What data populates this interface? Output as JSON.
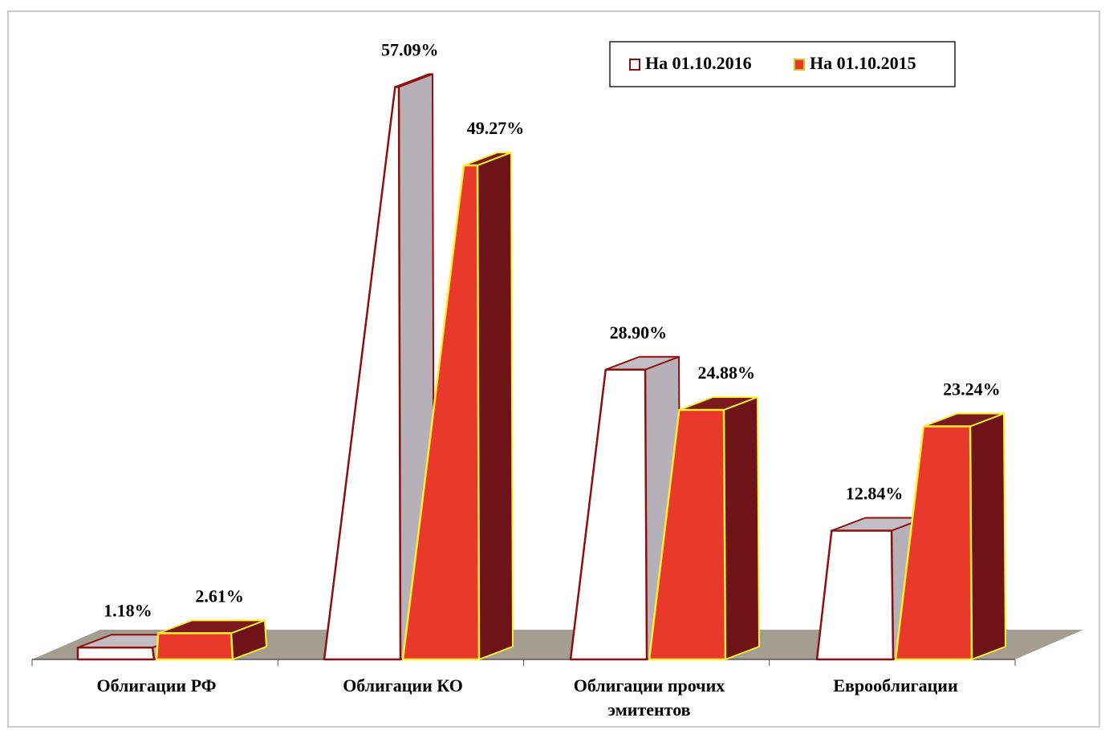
{
  "chart_data": {
    "type": "bar",
    "categories": [
      "Облигации РФ",
      "Облигации КО",
      "Облигации прочих эмитентов",
      "Еврооблигации"
    ],
    "series": [
      {
        "name": "На 01.10.2016",
        "color": "#ffffff",
        "values": [
          1.18,
          57.09,
          28.9,
          12.84
        ],
        "value_labels": [
          "1.18%",
          "57.09%",
          "28.90%",
          "12.84%"
        ]
      },
      {
        "name": "На 01.10.2015",
        "color": "#e8392a",
        "values": [
          2.61,
          49.27,
          24.88,
          23.24
        ],
        "value_labels": [
          "2.61%",
          "49.27%",
          "24.88%",
          "23.24%"
        ]
      }
    ],
    "legend": "top-right"
  }
}
